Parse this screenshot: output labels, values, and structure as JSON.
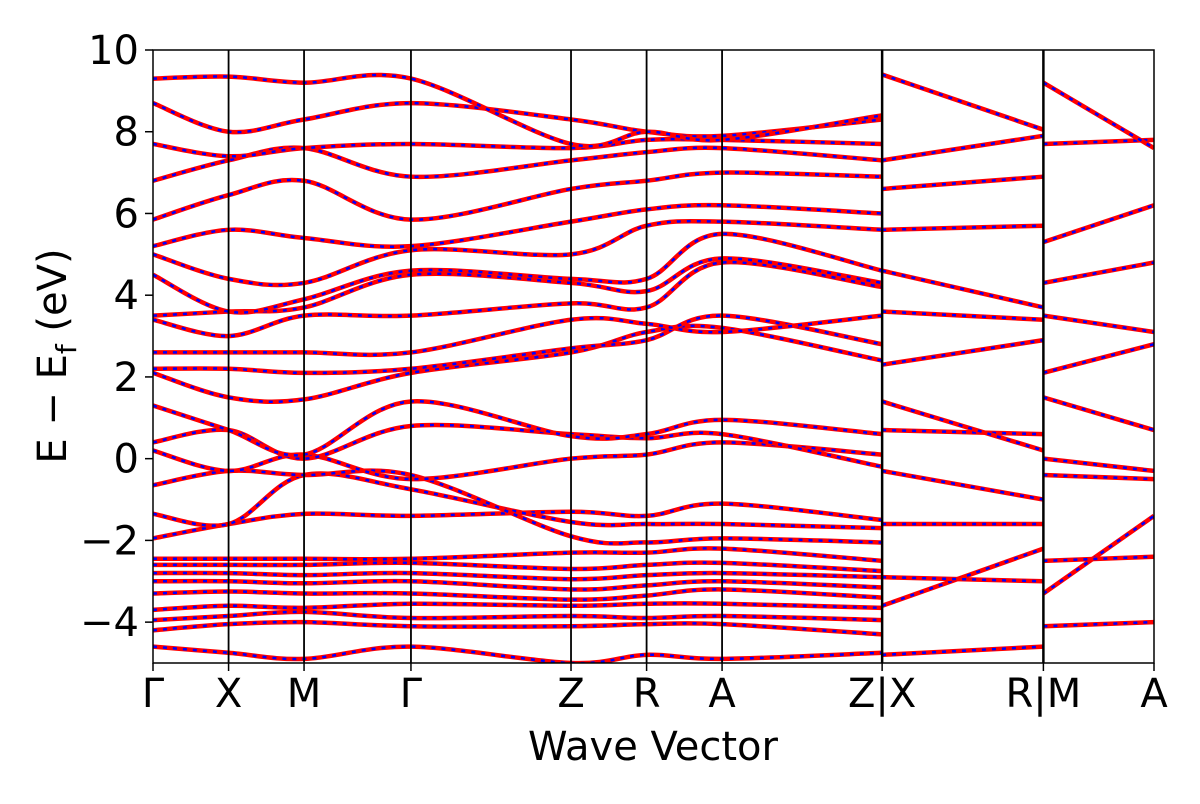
{
  "chart_data": {
    "type": "line",
    "title": "",
    "xlabel": "Wave Vector",
    "ylabel": "E − E_f (eV)",
    "ylabel_parts": {
      "prefix": "E − E",
      "subscript": "f",
      "suffix": " (eV)"
    },
    "ylim": [
      -5,
      10
    ],
    "yticks": [
      -4,
      -2,
      0,
      2,
      4,
      6,
      8,
      10
    ],
    "ytick_labels": [
      "−4",
      "−2",
      "0",
      "2",
      "4",
      "6",
      "8",
      "10"
    ],
    "grid": false,
    "legend": "none",
    "kpath_labels": [
      "Γ",
      "X",
      "M",
      "Γ",
      "Z",
      "R",
      "A",
      "Z|X",
      "R|M",
      "A"
    ],
    "kpath_positions": [
      0,
      0.0755,
      0.1509,
      0.2577,
      0.4176,
      0.4931,
      0.5685,
      0.7284,
      0.8895,
      1.0
    ],
    "discontinuities_after": [
      7,
      8
    ],
    "colors": {
      "primary": "#ff0000",
      "overlay": "#0000ff",
      "kpoint_line": "#000000"
    },
    "series_style": "red solid band lines overlaid with blue dashed band lines (identical dispersions)",
    "series": [
      {
        "name": "",
        "x": [
          0,
          0.0755,
          0.1509,
          0.2577,
          0.4176,
          0.4931,
          0.5685,
          0.7284
        ],
        "y": [
          -4.6,
          -4.75,
          -4.9,
          -4.6,
          -5.0,
          -4.8,
          -4.9,
          -4.75
        ]
      },
      {
        "name": "",
        "x": [
          0,
          0.0755,
          0.1509,
          0.2577,
          0.4176,
          0.4931,
          0.5685,
          0.7284
        ],
        "y": [
          -4.2,
          -4.05,
          -4.0,
          -4.1,
          -4.1,
          -4.05,
          -4.05,
          -4.3
        ]
      },
      {
        "name": "",
        "x": [
          0,
          0.0755,
          0.1509,
          0.2577,
          0.4176,
          0.4931,
          0.5685,
          0.7284
        ],
        "y": [
          -3.95,
          -3.85,
          -3.75,
          -3.9,
          -3.85,
          -3.9,
          -3.85,
          -3.95
        ]
      },
      {
        "name": "",
        "x": [
          0,
          0.0755,
          0.1509,
          0.2577,
          0.4176,
          0.4931,
          0.5685,
          0.7284
        ],
        "y": [
          -3.7,
          -3.6,
          -3.65,
          -3.55,
          -3.6,
          -3.55,
          -3.55,
          -3.65
        ]
      },
      {
        "name": "",
        "x": [
          0,
          0.0755,
          0.1509,
          0.2577,
          0.4176,
          0.4931,
          0.5685,
          0.7284
        ],
        "y": [
          -3.3,
          -3.25,
          -3.3,
          -3.3,
          -3.45,
          -3.35,
          -3.2,
          -3.4
        ]
      },
      {
        "name": "",
        "x": [
          0,
          0.0755,
          0.1509,
          0.2577,
          0.4176,
          0.4931,
          0.5685,
          0.7284
        ],
        "y": [
          -3.0,
          -3.0,
          -3.05,
          -3.0,
          -3.2,
          -3.1,
          -3.0,
          -3.15
        ]
      },
      {
        "name": "",
        "x": [
          0,
          0.0755,
          0.1509,
          0.2577,
          0.4176,
          0.4931,
          0.5685,
          0.7284
        ],
        "y": [
          -2.8,
          -2.8,
          -2.85,
          -2.8,
          -2.95,
          -2.85,
          -2.8,
          -2.9
        ]
      },
      {
        "name": "",
        "x": [
          0,
          0.0755,
          0.1509,
          0.2577,
          0.4176,
          0.4931,
          0.5685,
          0.7284
        ],
        "y": [
          -2.6,
          -2.6,
          -2.6,
          -2.55,
          -2.7,
          -2.6,
          -2.55,
          -2.75
        ]
      },
      {
        "name": "",
        "x": [
          0,
          0.0755,
          0.1509,
          0.2577,
          0.4176,
          0.4931,
          0.5685,
          0.7284
        ],
        "y": [
          -2.45,
          -2.45,
          -2.45,
          -2.45,
          -2.3,
          -2.3,
          -2.2,
          -2.5
        ]
      },
      {
        "name": "",
        "x": [
          0,
          0.0755,
          0.1509,
          0.2577,
          0.4176,
          0.4931,
          0.5685,
          0.7284
        ],
        "y": [
          -1.95,
          -1.6,
          -1.35,
          -1.4,
          -1.3,
          -1.4,
          -1.1,
          -1.5
        ]
      },
      {
        "name": "",
        "x": [
          0,
          0.0755,
          0.1509,
          0.2577,
          0.4176,
          0.4931,
          0.5685,
          0.7284
        ],
        "y": [
          -1.35,
          -1.6,
          -0.4,
          -0.75,
          -1.55,
          -1.6,
          -1.6,
          -1.7
        ]
      },
      {
        "name": "",
        "x": [
          0,
          0.0755,
          0.1509,
          0.2577,
          0.4176,
          0.4931,
          0.5685,
          0.7284
        ],
        "y": [
          -0.65,
          -0.3,
          -0.4,
          -0.4,
          -1.9,
          -2.05,
          -1.95,
          -2.05
        ]
      },
      {
        "name": "",
        "x": [
          0,
          0.0755,
          0.1509,
          0.2577,
          0.4176,
          0.4931,
          0.5685,
          0.7284
        ],
        "y": [
          0.2,
          -0.3,
          0.1,
          -0.5,
          0.0,
          0.1,
          0.4,
          0.1
        ]
      },
      {
        "name": "",
        "x": [
          0,
          0.0755,
          0.1509,
          0.2577,
          0.4176,
          0.4931,
          0.5685,
          0.7284
        ],
        "y": [
          0.4,
          0.7,
          0.0,
          0.8,
          0.6,
          0.5,
          0.6,
          -0.2
        ]
      },
      {
        "name": "",
        "x": [
          0,
          0.0755,
          0.1509,
          0.2577,
          0.4176,
          0.4931,
          0.5685,
          0.7284
        ],
        "y": [
          1.3,
          0.7,
          0.1,
          1.4,
          0.55,
          0.6,
          0.95,
          0.6
        ]
      },
      {
        "name": "",
        "x": [
          0,
          0.0755,
          0.1509,
          0.2577,
          0.4176,
          0.4931,
          0.5685,
          0.7284
        ],
        "y": [
          2.1,
          1.5,
          1.45,
          2.1,
          2.6,
          3.1,
          3.2,
          2.4
        ]
      },
      {
        "name": "",
        "x": [
          0,
          0.0755,
          0.1509,
          0.2577,
          0.4176,
          0.4931,
          0.5685,
          0.7284
        ],
        "y": [
          2.2,
          2.2,
          2.1,
          2.2,
          2.7,
          2.9,
          3.5,
          2.8
        ]
      },
      {
        "name": "",
        "x": [
          0,
          0.0755,
          0.1509,
          0.2577,
          0.4176,
          0.4931,
          0.5685,
          0.7284
        ],
        "y": [
          2.6,
          2.6,
          2.6,
          2.6,
          3.4,
          3.3,
          3.1,
          3.5
        ]
      },
      {
        "name": "",
        "x": [
          0,
          0.0755,
          0.1509,
          0.2577,
          0.4176,
          0.4931,
          0.5685,
          0.7284
        ],
        "y": [
          3.4,
          3.0,
          3.5,
          3.5,
          3.8,
          3.7,
          4.8,
          4.2
        ]
      },
      {
        "name": "",
        "x": [
          0,
          0.0755,
          0.1509,
          0.2577,
          0.4176,
          0.4931,
          0.5685,
          0.7284
        ],
        "y": [
          3.5,
          3.6,
          3.7,
          4.5,
          4.3,
          4.1,
          4.9,
          4.3
        ]
      },
      {
        "name": "",
        "x": [
          0,
          0.0755,
          0.1509,
          0.2577,
          0.4176,
          0.4931,
          0.5685,
          0.7284
        ],
        "y": [
          4.5,
          3.6,
          3.9,
          4.6,
          4.4,
          4.4,
          5.5,
          4.6
        ]
      },
      {
        "name": "",
        "x": [
          0,
          0.0755,
          0.1509,
          0.2577,
          0.4176,
          0.4931,
          0.5685,
          0.7284
        ],
        "y": [
          5.0,
          4.4,
          4.3,
          5.1,
          5.0,
          5.7,
          5.8,
          5.6
        ]
      },
      {
        "name": "",
        "x": [
          0,
          0.0755,
          0.1509,
          0.2577,
          0.4176,
          0.4931,
          0.5685,
          0.7284
        ],
        "y": [
          5.2,
          5.6,
          5.4,
          5.2,
          5.8,
          6.1,
          6.2,
          6.0
        ]
      },
      {
        "name": "",
        "x": [
          0,
          0.0755,
          0.1509,
          0.2577,
          0.4176,
          0.4931,
          0.5685,
          0.7284
        ],
        "y": [
          5.85,
          6.45,
          6.8,
          5.85,
          6.6,
          6.8,
          7.0,
          6.9
        ]
      },
      {
        "name": "",
        "x": [
          0,
          0.0755,
          0.1509,
          0.2577,
          0.4176,
          0.4931,
          0.5685,
          0.7284
        ],
        "y": [
          6.8,
          7.3,
          7.6,
          6.9,
          7.3,
          7.5,
          7.6,
          7.3
        ]
      },
      {
        "name": "",
        "x": [
          0,
          0.0755,
          0.1509,
          0.2577,
          0.4176,
          0.4931,
          0.5685,
          0.7284
        ],
        "y": [
          7.7,
          7.4,
          7.6,
          7.7,
          7.6,
          7.8,
          7.8,
          7.7
        ]
      },
      {
        "name": "",
        "x": [
          0,
          0.0755,
          0.1509,
          0.2577,
          0.4176,
          0.4931,
          0.5685,
          0.7284
        ],
        "y": [
          8.7,
          8.0,
          8.3,
          8.7,
          8.3,
          8.0,
          7.9,
          8.3
        ]
      },
      {
        "name": "",
        "x": [
          0,
          0.0755,
          0.1509,
          0.2577,
          0.4176,
          0.4931,
          0.5685,
          0.7284
        ],
        "y": [
          9.3,
          9.35,
          9.2,
          9.3,
          7.7,
          8.0,
          7.8,
          8.4
        ]
      },
      {
        "name": "",
        "x": [
          0.7284,
          0.8895
        ],
        "y": [
          -4.8,
          -4.6
        ]
      },
      {
        "name": "",
        "x": [
          0.7284,
          0.8895
        ],
        "y": [
          -3.6,
          -2.2
        ]
      },
      {
        "name": "",
        "x": [
          0.7284,
          0.8895
        ],
        "y": [
          -2.9,
          -3.0
        ]
      },
      {
        "name": "",
        "x": [
          0.7284,
          0.8895
        ],
        "y": [
          -1.6,
          -1.6
        ]
      },
      {
        "name": "",
        "x": [
          0.7284,
          0.8895
        ],
        "y": [
          -0.3,
          -1.0
        ]
      },
      {
        "name": "",
        "x": [
          0.7284,
          0.8895
        ],
        "y": [
          0.7,
          0.6
        ]
      },
      {
        "name": "",
        "x": [
          0.7284,
          0.8895
        ],
        "y": [
          1.4,
          0.2
        ]
      },
      {
        "name": "",
        "x": [
          0.7284,
          0.8895
        ],
        "y": [
          2.3,
          2.9
        ]
      },
      {
        "name": "",
        "x": [
          0.7284,
          0.8895
        ],
        "y": [
          3.6,
          3.4
        ]
      },
      {
        "name": "",
        "x": [
          0.7284,
          0.8895
        ],
        "y": [
          4.6,
          3.7
        ]
      },
      {
        "name": "",
        "x": [
          0.7284,
          0.8895
        ],
        "y": [
          5.6,
          5.7
        ]
      },
      {
        "name": "",
        "x": [
          0.7284,
          0.8895
        ],
        "y": [
          6.6,
          6.9
        ]
      },
      {
        "name": "",
        "x": [
          0.7284,
          0.8895
        ],
        "y": [
          7.3,
          7.9
        ]
      },
      {
        "name": "",
        "x": [
          0.7284,
          0.8895
        ],
        "y": [
          9.4,
          8.05
        ]
      },
      {
        "name": "",
        "x": [
          0.8895,
          1.0
        ],
        "y": [
          -4.1,
          -4.0
        ]
      },
      {
        "name": "",
        "x": [
          0.8895,
          1.0
        ],
        "y": [
          -3.3,
          -1.4
        ]
      },
      {
        "name": "",
        "x": [
          0.8895,
          1.0
        ],
        "y": [
          -2.5,
          -2.4
        ]
      },
      {
        "name": "",
        "x": [
          0.8895,
          1.0
        ],
        "y": [
          -0.4,
          -0.5
        ]
      },
      {
        "name": "",
        "x": [
          0.8895,
          1.0
        ],
        "y": [
          0.0,
          -0.3
        ]
      },
      {
        "name": "",
        "x": [
          0.8895,
          1.0
        ],
        "y": [
          1.5,
          0.7
        ]
      },
      {
        "name": "",
        "x": [
          0.8895,
          1.0
        ],
        "y": [
          2.1,
          2.8
        ]
      },
      {
        "name": "",
        "x": [
          0.8895,
          1.0
        ],
        "y": [
          3.5,
          3.1
        ]
      },
      {
        "name": "",
        "x": [
          0.8895,
          1.0
        ],
        "y": [
          4.3,
          4.8
        ]
      },
      {
        "name": "",
        "x": [
          0.8895,
          1.0
        ],
        "y": [
          5.3,
          6.2
        ]
      },
      {
        "name": "",
        "x": [
          0.8895,
          1.0
        ],
        "y": [
          7.7,
          7.8
        ]
      },
      {
        "name": "",
        "x": [
          0.8895,
          1.0
        ],
        "y": [
          9.2,
          7.6
        ]
      }
    ]
  }
}
